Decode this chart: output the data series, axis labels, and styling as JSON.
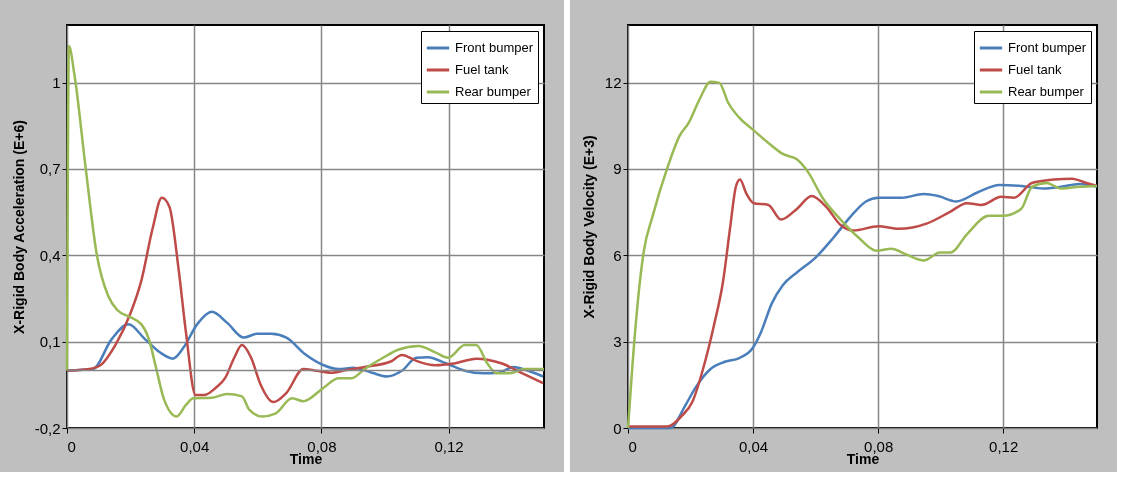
{
  "chart_data": [
    {
      "type": "line",
      "xlabel": "Time",
      "ylabel": "X-Rigid Body Acceleration (E+6)",
      "xlim": [
        0,
        0.15
      ],
      "xticks": [
        0,
        {
          "value": 0.04,
          "label": "0,04"
        },
        {
          "value": 0.08,
          "label": "0,08"
        },
        {
          "value": 0.12,
          "label": "0,12"
        }
      ],
      "ylim": [
        -0.2,
        1.2
      ],
      "yticks": [
        {
          "value": -0.2,
          "label": "-0,2"
        },
        {
          "value": 0.1,
          "label": "0,1"
        },
        {
          "value": 0.4,
          "label": "0,4"
        },
        {
          "value": 0.7,
          "label": "0,7"
        },
        1
      ],
      "grid": true,
      "legend": "top right",
      "line_style": "solid",
      "ref_lines": [
        {
          "axis": "y",
          "value": 0,
          "color": "#868686"
        }
      ],
      "series": [
        {
          "name": "Front bumper",
          "color": "#4a7ebb",
          "x": [
            0,
            0.0082,
            0.014,
            0.0193,
            0.0246,
            0.0292,
            0.0333,
            0.0368,
            0.0409,
            0.0456,
            0.0503,
            0.0556,
            0.0596,
            0.0643,
            0.069,
            0.0749,
            0.0807,
            0.0854,
            0.0901,
            0.0959,
            0.1006,
            0.1053,
            0.1099,
            0.1135,
            0.1193,
            0.1251,
            0.131,
            0.1357,
            0.1404,
            0.145,
            0.1497
          ],
          "values": [
            0,
            0.005,
            0.108,
            0.16,
            0.108,
            0.063,
            0.041,
            0.082,
            0.16,
            0.204,
            0.166,
            0.114,
            0.127,
            0.127,
            0.114,
            0.056,
            0.018,
            0.005,
            0.009,
            -0.008,
            -0.021,
            -0.001,
            0.044,
            0.046,
            0.024,
            -0.001,
            -0.01,
            -0.008,
            0.012,
            -0.001,
            -0.021
          ]
        },
        {
          "name": "Fuel tank",
          "color": "#be4b48",
          "x": [
            0,
            0.007,
            0.0105,
            0.0152,
            0.0199,
            0.0234,
            0.0269,
            0.0298,
            0.0322,
            0.0351,
            0.0374,
            0.0404,
            0.0433,
            0.0468,
            0.0497,
            0.0526,
            0.055,
            0.0579,
            0.0608,
            0.0649,
            0.069,
            0.0743,
            0.0784,
            0.083,
            0.0877,
            0.0936,
            0.1018,
            0.1053,
            0.1099,
            0.1158,
            0.1216,
            0.1287,
            0.1368,
            0.1439,
            0.1497
          ],
          "values": [
            -0.001,
            0.005,
            0.018,
            0.088,
            0.197,
            0.313,
            0.492,
            0.6,
            0.569,
            0.351,
            0.133,
            -0.085,
            -0.085,
            -0.06,
            -0.027,
            0.044,
            0.088,
            0.044,
            -0.047,
            -0.11,
            -0.078,
            0.005,
            -0.001,
            -0.008,
            0.001,
            0.012,
            0.031,
            0.054,
            0.033,
            0.018,
            0.024,
            0.041,
            0.024,
            -0.014,
            -0.044
          ]
        },
        {
          "name": "Rear bumper",
          "color": "#98b954",
          "x": [
            0,
            0.0006,
            0.0023,
            0.0058,
            0.0094,
            0.0129,
            0.0158,
            0.0199,
            0.0234,
            0.0257,
            0.0281,
            0.0304,
            0.0345,
            0.0374,
            0.0398,
            0.0456,
            0.0503,
            0.055,
            0.0573,
            0.0614,
            0.0655,
            0.0708,
            0.0743,
            0.0807,
            0.0854,
            0.0895,
            0.0936,
            0.0994,
            0.1041,
            0.1105,
            0.1158,
            0.1199,
            0.1251,
            0.1287,
            0.1322,
            0.1351,
            0.1392,
            0.1439,
            0.15
          ],
          "values": [
            0,
            1.127,
            1.03,
            0.71,
            0.4,
            0.26,
            0.21,
            0.185,
            0.16,
            0.11,
            0.005,
            -0.097,
            -0.16,
            -0.12,
            -0.097,
            -0.095,
            -0.082,
            -0.09,
            -0.136,
            -0.16,
            -0.15,
            -0.097,
            -0.107,
            -0.06,
            -0.027,
            -0.027,
            0.005,
            0.044,
            0.072,
            0.085,
            0.063,
            0.044,
            0.088,
            0.088,
            0.024,
            -0.01,
            -0.01,
            0.005,
            0.005
          ]
        }
      ]
    },
    {
      "type": "line",
      "xlabel": "Time",
      "ylabel": "X-Rigid Body Velocity (E+3)",
      "xlim": [
        0,
        0.15
      ],
      "xticks": [
        0,
        {
          "value": 0.04,
          "label": "0,04"
        },
        {
          "value": 0.08,
          "label": "0,08"
        },
        {
          "value": 0.12,
          "label": "0,12"
        }
      ],
      "ylim": [
        0,
        14
      ],
      "yticks": [
        0,
        3,
        6,
        9,
        12
      ],
      "grid": true,
      "legend": "top right",
      "line_style": "solid",
      "series": [
        {
          "name": "Front bumper",
          "color": "#4a7ebb",
          "x": [
            0,
            0.0136,
            0.0183,
            0.0217,
            0.0264,
            0.031,
            0.0356,
            0.0397,
            0.0425,
            0.046,
            0.0495,
            0.0541,
            0.0599,
            0.0657,
            0.0714,
            0.0761,
            0.0801,
            0.0876,
            0.0946,
            0.0992,
            0.105,
            0.1119,
            0.1188,
            0.1258,
            0.1327,
            0.1385,
            0.1443,
            0.15
          ],
          "values": [
            0,
            0,
            0.78,
            1.42,
            2.05,
            2.3,
            2.43,
            2.75,
            3.32,
            4.33,
            4.96,
            5.41,
            5.91,
            6.61,
            7.37,
            7.87,
            8.0,
            8.0,
            8.13,
            8.06,
            7.87,
            8.19,
            8.44,
            8.41,
            8.32,
            8.38,
            8.48,
            8.38
          ]
        },
        {
          "name": "Fuel tank",
          "color": "#be4b48",
          "x": [
            0,
            0.0125,
            0.0171,
            0.0206,
            0.024,
            0.0275,
            0.0304,
            0.0327,
            0.0345,
            0.0358,
            0.0379,
            0.0402,
            0.0449,
            0.0489,
            0.0541,
            0.0587,
            0.0634,
            0.068,
            0.072,
            0.0801,
            0.0865,
            0.0957,
            0.1027,
            0.1084,
            0.1131,
            0.1194,
            0.1235,
            0.1292,
            0.1362,
            0.142,
            0.1466,
            0.15
          ],
          "values": [
            0.05,
            0.05,
            0.41,
            0.91,
            2.05,
            3.57,
            5.09,
            6.99,
            8.38,
            8.63,
            8.13,
            7.81,
            7.75,
            7.24,
            7.62,
            8.06,
            7.68,
            7.05,
            6.86,
            7.01,
            6.92,
            7.11,
            7.49,
            7.81,
            7.75,
            8.03,
            8.0,
            8.51,
            8.63,
            8.66,
            8.51,
            8.41
          ]
        },
        {
          "name": "Rear bumper",
          "color": "#98b954",
          "x": [
            0,
            0.0015,
            0.0032,
            0.005,
            0.0079,
            0.0125,
            0.0165,
            0.0194,
            0.0229,
            0.0264,
            0.0292,
            0.0321,
            0.0356,
            0.0402,
            0.0449,
            0.0495,
            0.0541,
            0.0576,
            0.0622,
            0.068,
            0.0738,
            0.0795,
            0.0842,
            0.0888,
            0.0946,
            0.0998,
            0.1032,
            0.1084,
            0.1154,
            0.12,
            0.1258,
            0.1292,
            0.1339,
            0.1385,
            0.1443,
            0.15
          ],
          "values": [
            0,
            2.3,
            4.46,
            6.1,
            7.37,
            9.01,
            10.15,
            10.6,
            11.42,
            12.03,
            11.99,
            11.29,
            10.78,
            10.34,
            9.9,
            9.52,
            9.33,
            8.89,
            8.0,
            7.24,
            6.61,
            6.16,
            6.23,
            6.04,
            5.82,
            6.1,
            6.1,
            6.73,
            7.37,
            7.37,
            7.62,
            8.38,
            8.51,
            8.32,
            8.38,
            8.41
          ]
        }
      ]
    }
  ]
}
